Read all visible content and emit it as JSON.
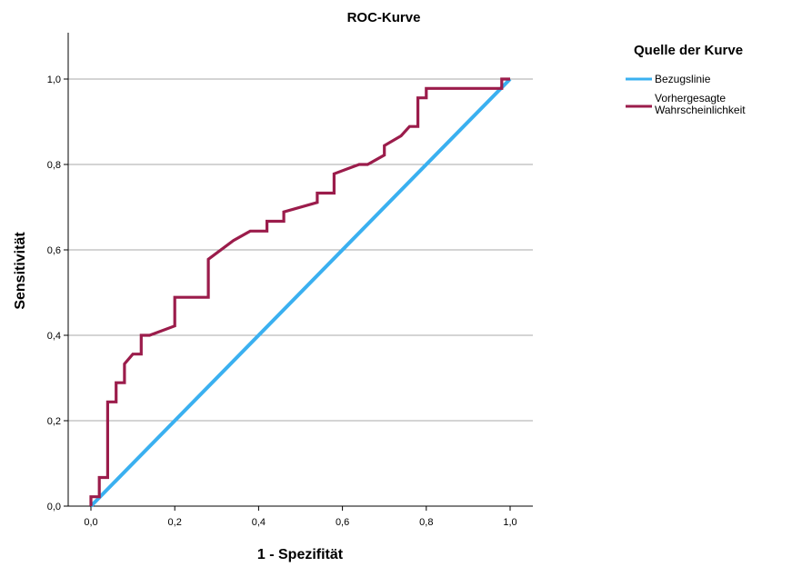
{
  "chart_data": {
    "type": "line",
    "title": "ROC-Kurve",
    "xlabel": "1 - Spezifität",
    "ylabel": "Sensitivität",
    "xlim": [
      0,
      1
    ],
    "ylim": [
      0,
      1.1
    ],
    "x_ticks": [
      0,
      0.2,
      0.4,
      0.6,
      0.8,
      1.0
    ],
    "x_tick_labels": [
      "0,0",
      "0,2",
      "0,4",
      "0,6",
      "0,8",
      "1,0"
    ],
    "y_ticks": [
      0,
      0.2,
      0.4,
      0.6,
      0.8,
      1.0
    ],
    "y_tick_labels": [
      "0,0",
      "0,2",
      "0,4",
      "0,6",
      "0,8",
      "1,0"
    ],
    "grid": "horizontal",
    "legend_title": "Quelle der Kurve",
    "legend_position": "right",
    "series": [
      {
        "name": "Bezugslinie",
        "color": "#3ab0f0",
        "x": [
          0,
          1
        ],
        "y": [
          0,
          1
        ]
      },
      {
        "name": "Vorhergesagte Wahrscheinlichkeit",
        "legend_lines": [
          "Vorhergesagte",
          "Wahrscheinlichkeit"
        ],
        "color": "#9b1c4b",
        "x": [
          0,
          0,
          0.02,
          0.02,
          0.04,
          0.04,
          0.06,
          0.06,
          0.08,
          0.08,
          0.1,
          0.12,
          0.12,
          0.14,
          0.2,
          0.2,
          0.28,
          0.28,
          0.34,
          0.38,
          0.42,
          0.42,
          0.46,
          0.46,
          0.54,
          0.54,
          0.58,
          0.58,
          0.64,
          0.66,
          0.7,
          0.7,
          0.74,
          0.76,
          0.78,
          0.78,
          0.8,
          0.8,
          0.98,
          0.98,
          1.0
        ],
        "y": [
          0,
          0.022,
          0.022,
          0.067,
          0.067,
          0.244,
          0.244,
          0.289,
          0.289,
          0.333,
          0.356,
          0.356,
          0.4,
          0.4,
          0.422,
          0.489,
          0.489,
          0.578,
          0.622,
          0.644,
          0.644,
          0.667,
          0.667,
          0.689,
          0.711,
          0.733,
          0.733,
          0.778,
          0.8,
          0.8,
          0.822,
          0.844,
          0.867,
          0.889,
          0.889,
          0.956,
          0.956,
          0.978,
          0.978,
          1.0,
          1.0
        ]
      }
    ]
  }
}
